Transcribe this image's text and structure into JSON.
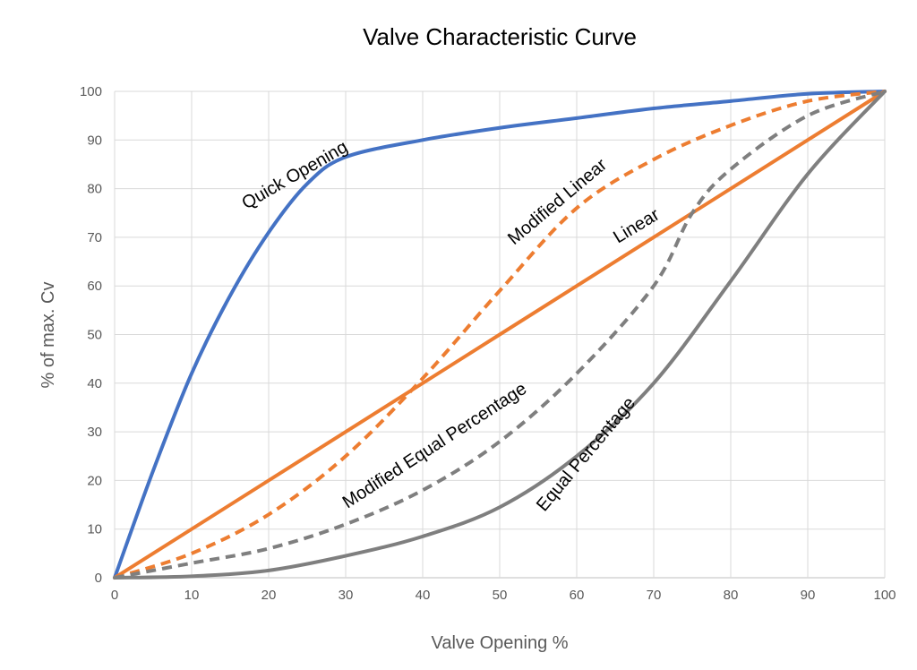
{
  "chart_data": {
    "type": "line",
    "title": "Valve Characteristic Curve",
    "xlabel": "Valve Opening %",
    "ylabel": "% of max. Cv",
    "xlim": [
      0,
      100
    ],
    "ylim": [
      0,
      100
    ],
    "xticks": [
      0,
      10,
      20,
      30,
      40,
      50,
      60,
      70,
      80,
      90,
      100
    ],
    "yticks": [
      0,
      10,
      20,
      30,
      40,
      50,
      60,
      70,
      80,
      90,
      100
    ],
    "grid": true,
    "legend": "none (inline labels)",
    "series": [
      {
        "name": "Quick Opening",
        "color": "#4472C4",
        "dash": false,
        "x": [
          0,
          5,
          10,
          15,
          20,
          25,
          30,
          40,
          50,
          60,
          70,
          80,
          90,
          100
        ],
        "y": [
          0,
          22,
          42,
          58,
          71,
          81,
          86.5,
          90,
          92.5,
          94.5,
          96.5,
          98,
          99.5,
          100
        ]
      },
      {
        "name": "Linear",
        "color": "#ED7D31",
        "dash": false,
        "x": [
          0,
          100
        ],
        "y": [
          0,
          100
        ]
      },
      {
        "name": "Modified Linear",
        "color": "#ED7D31",
        "dash": true,
        "x": [
          0,
          10,
          20,
          30,
          40,
          50,
          60,
          70,
          80,
          90,
          100
        ],
        "y": [
          0,
          5,
          13,
          25,
          41,
          59,
          76,
          86,
          93,
          98,
          100
        ]
      },
      {
        "name": "Modified Equal Percentage",
        "color": "#7F7F7F",
        "dash": true,
        "x": [
          0,
          10,
          20,
          30,
          40,
          50,
          60,
          70,
          75,
          80,
          90,
          100
        ],
        "y": [
          0,
          3,
          6,
          11,
          18,
          28,
          42,
          60,
          75,
          84,
          95,
          100
        ]
      },
      {
        "name": "Equal Percentage",
        "color": "#7F7F7F",
        "dash": false,
        "x": [
          0,
          10,
          20,
          30,
          40,
          50,
          60,
          70,
          80,
          90,
          100
        ],
        "y": [
          0,
          0.3,
          1.5,
          4.5,
          8.5,
          14.5,
          25,
          40,
          61,
          83,
          100
        ]
      }
    ]
  }
}
